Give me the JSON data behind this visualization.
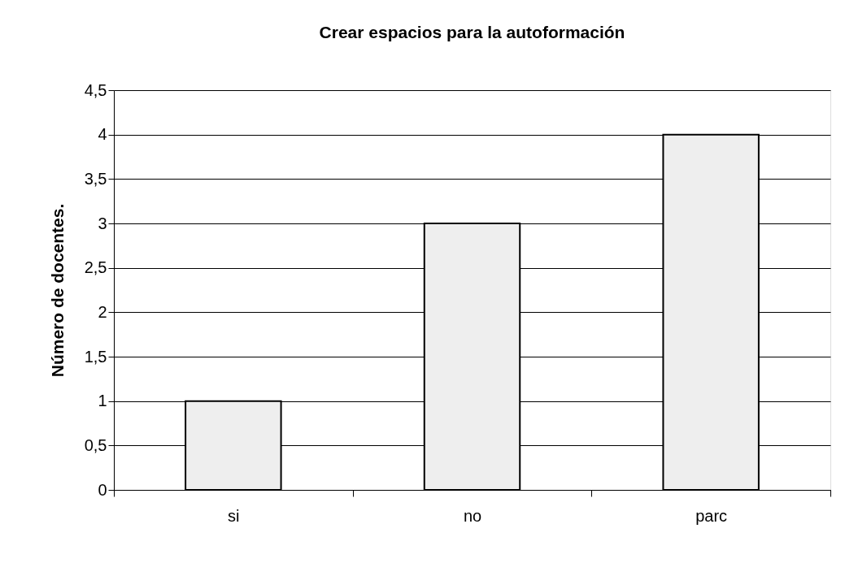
{
  "chart_data": {
    "type": "bar",
    "title": "Crear espacios para la autoformación",
    "ylabel": "Número de docentes.",
    "categories": [
      "si",
      "no",
      "parc"
    ],
    "series": [
      {
        "color": "#eeeeee",
        "values": [
          1,
          3,
          4
        ]
      }
    ],
    "ylim": [
      0,
      4.5
    ],
    "yticks": [
      0,
      {
        "value": 0.5,
        "label": "0,5"
      },
      1,
      {
        "value": 1.5,
        "label": "1,5"
      },
      2,
      {
        "value": 2.5,
        "label": "2,5"
      },
      3,
      {
        "value": 3.5,
        "label": "3,5"
      },
      4,
      {
        "value": 4.5,
        "label": "4,5"
      }
    ],
    "grid": "y"
  }
}
